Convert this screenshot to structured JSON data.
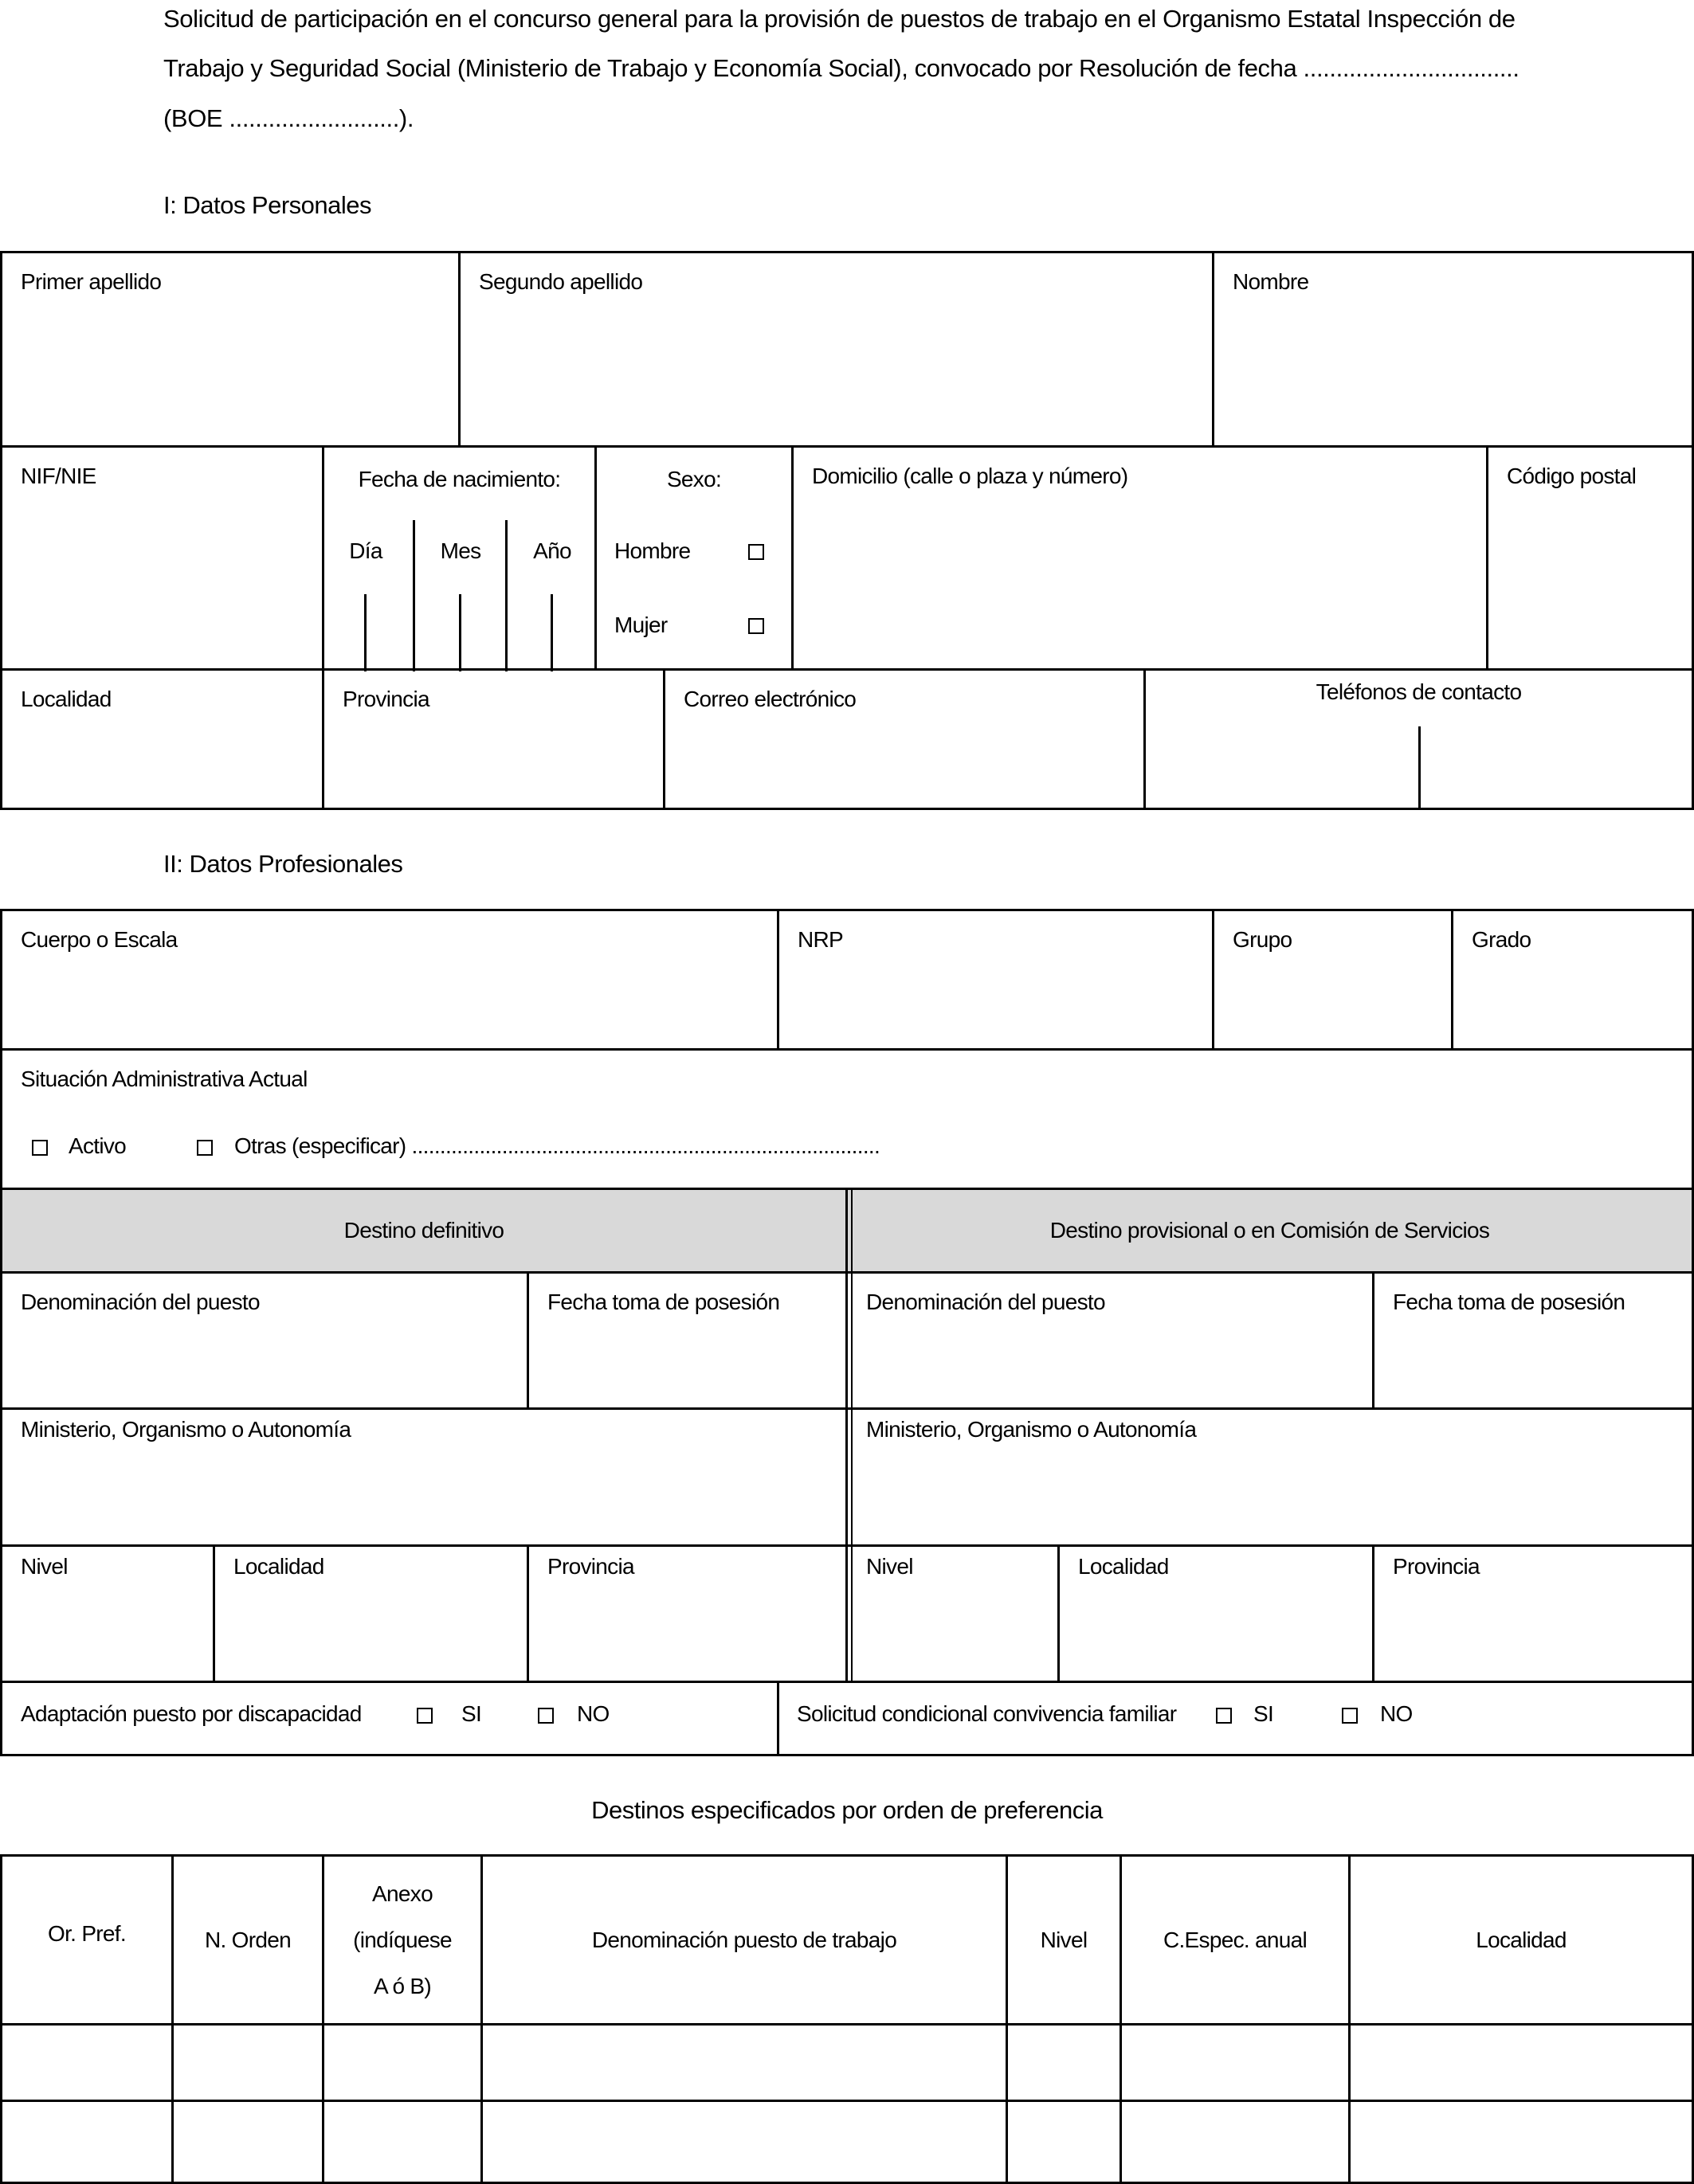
{
  "intro": {
    "lines": [
      "Solicitud de participación en el concurso general para la provisión de puestos de trabajo en el Organismo Estatal Inspección de",
      "Trabajo y Seguridad Social (Ministerio de Trabajo y Economía Social), convocado por Resolución de fecha .................................",
      "(BOE ..........................)."
    ]
  },
  "personal": {
    "heading": "I: Datos Personales",
    "primer_apellido": "Primer apellido",
    "segundo_apellido": "Segundo apellido",
    "nombre": "Nombre",
    "nif": "NIF/NIE",
    "fecha_nacimiento": "Fecha de nacimiento:",
    "dia": "Día",
    "mes": "Mes",
    "anio": "Año",
    "sexo": "Sexo:",
    "hombre": "Hombre",
    "mujer": "Mujer",
    "domicilio": "Domicilio (calle o plaza y número)",
    "codigo_postal": "Código postal",
    "localidad": "Localidad",
    "provincia": "Provincia",
    "correo": "Correo electrónico",
    "telefonos": "Teléfonos de contacto"
  },
  "profesional": {
    "heading": "II: Datos Profesionales",
    "cuerpo": "Cuerpo o Escala",
    "nrp": "NRP",
    "grupo": "Grupo",
    "grado": "Grado",
    "situacion": "Situación Administrativa Actual",
    "activo": "Activo",
    "otras": "Otras (especificar) ...................................................................................",
    "destino_definitivo": "Destino definitivo",
    "destino_provisional": "Destino provisional o en Comisión de Servicios",
    "denominacion": "Denominación del puesto",
    "fecha_toma": "Fecha toma de posesión",
    "ministerio": "Ministerio, Organismo o Autonomía",
    "nivel": "Nivel",
    "localidad": "Localidad",
    "provincia": "Provincia",
    "adaptacion": "Adaptación puesto por discapacidad",
    "condicional": "Solicitud condicional convivencia familiar",
    "si": "SI",
    "no": "NO"
  },
  "destinos": {
    "heading": "Destinos especificados por orden de preferencia",
    "columns": [
      "Or. Pref.",
      "N. Orden",
      "Anexo",
      "(indíquese",
      "A ó B)",
      "Denominación puesto de trabajo",
      "Nivel",
      "C.Espec. anual",
      "Localidad"
    ]
  },
  "colors": {
    "header_fill": "#d9d9d9",
    "border": "#000000"
  }
}
